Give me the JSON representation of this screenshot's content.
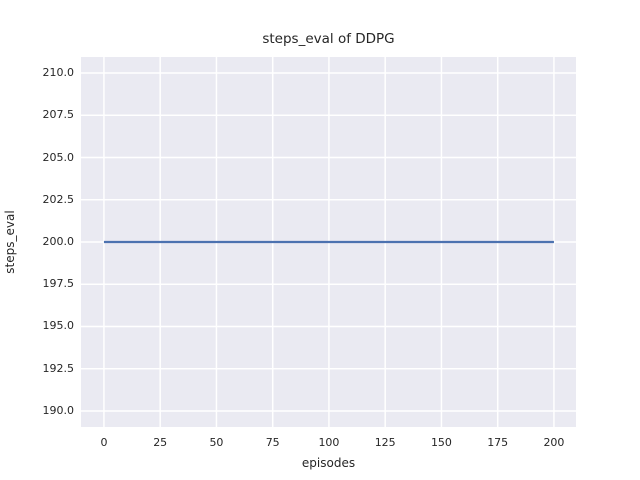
{
  "chart_data": {
    "type": "line",
    "title": "steps_eval of DDPG",
    "xlabel": "episodes",
    "ylabel": "steps_eval",
    "xlim": [
      -10.2,
      209.8
    ],
    "ylim": [
      189.05,
      210.95
    ],
    "xticks": [
      0,
      25,
      50,
      75,
      100,
      125,
      150,
      175,
      200
    ],
    "xtick_labels": [
      "0",
      "25",
      "50",
      "75",
      "100",
      "125",
      "150",
      "175",
      "200"
    ],
    "yticks": [
      190.0,
      192.5,
      195.0,
      197.5,
      200.0,
      202.5,
      205.0,
      207.5,
      210.0
    ],
    "ytick_labels": [
      "190.0",
      "192.5",
      "195.0",
      "197.5",
      "200.0",
      "202.5",
      "205.0",
      "207.5",
      "210.0"
    ],
    "grid": true,
    "legend_position": "none",
    "series": [
      {
        "name": "steps_eval",
        "color": "#4c72b0",
        "x": [
          0,
          200
        ],
        "y": [
          200,
          200
        ]
      }
    ],
    "style": {
      "figure_background": "#ffffff",
      "plot_background": "#eaeaf2",
      "grid_color": "#ffffff",
      "text_color": "#262626"
    }
  }
}
